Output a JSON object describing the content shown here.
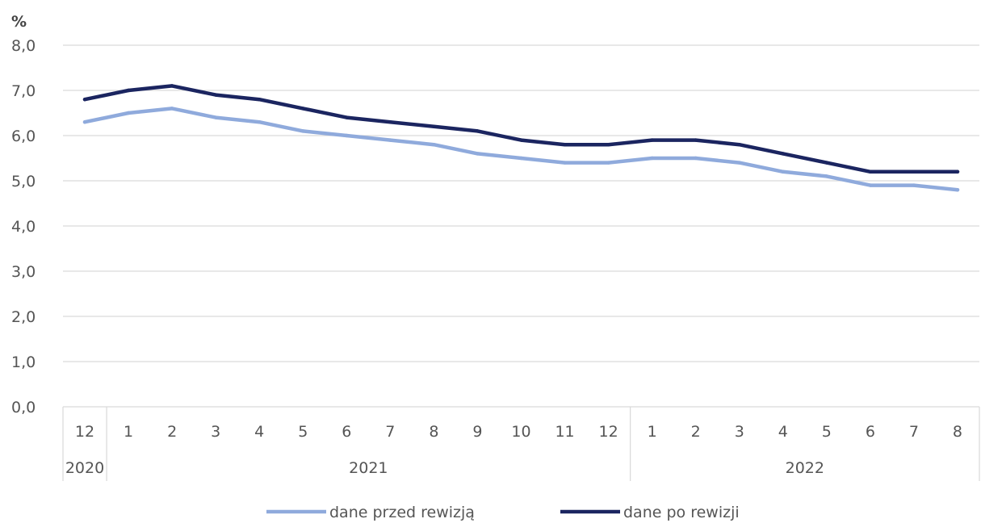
{
  "chart_data": {
    "type": "line",
    "unit_label": "%",
    "ylim": [
      0,
      8
    ],
    "y_ticks": [
      "0,0",
      "1,0",
      "2,0",
      "3,0",
      "4,0",
      "5,0",
      "6,0",
      "7,0",
      "8,0"
    ],
    "categories": [
      "12",
      "1",
      "2",
      "3",
      "4",
      "5",
      "6",
      "7",
      "8",
      "9",
      "10",
      "11",
      "12",
      "1",
      "2",
      "3",
      "4",
      "5",
      "6",
      "7",
      "8"
    ],
    "year_groups": [
      {
        "label": "2020",
        "start": 0,
        "end": 0
      },
      {
        "label": "2021",
        "start": 1,
        "end": 12
      },
      {
        "label": "2022",
        "start": 13,
        "end": 20
      }
    ],
    "series": [
      {
        "name": "dane przed rewizją",
        "color": "#8faadc",
        "values": [
          6.3,
          6.5,
          6.6,
          6.4,
          6.3,
          6.1,
          6.0,
          5.9,
          5.8,
          5.6,
          5.5,
          5.4,
          5.4,
          5.5,
          5.5,
          5.4,
          5.2,
          5.1,
          4.9,
          4.9,
          4.8
        ]
      },
      {
        "name": "dane po rewizji",
        "color": "#1b2560",
        "values": [
          6.8,
          7.0,
          7.1,
          6.9,
          6.8,
          6.6,
          6.4,
          6.3,
          6.2,
          6.1,
          5.9,
          5.8,
          5.8,
          5.9,
          5.9,
          5.8,
          5.6,
          5.4,
          5.2,
          5.2,
          5.2
        ]
      }
    ],
    "grid": true,
    "gridline_color": "#d9d9d9",
    "legend_position": "bottom-center"
  }
}
